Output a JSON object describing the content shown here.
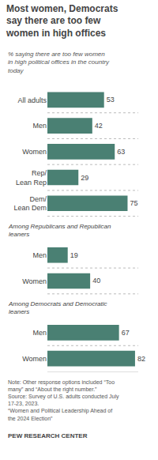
{
  "chart_data": {
    "type": "bar",
    "orientation": "horizontal",
    "title": "Most women, Democrats\nsay there are too few\nwomen in high offices",
    "subtitle": "% saying there are too few women\nin high political offices in the country\ntoday",
    "categories": [
      "All adults",
      "Men",
      "Women",
      "Rep/\nLean Rep",
      "Dem/\nLean Dem",
      "Men",
      "Women",
      "Men",
      "Women"
    ],
    "values": [
      53,
      42,
      63,
      29,
      75,
      19,
      40,
      67,
      82
    ],
    "color": "#4a8073",
    "xlim": [
      0,
      85
    ],
    "data_labels": true,
    "tick_labels": "y",
    "grid": false,
    "annotations": [
      {
        "text": "Among Republicans and Republican\nleaners",
        "y": 4.5
      },
      {
        "text": "Among Democrats and Democratic\nleaners",
        "y": 6.5
      }
    ],
    "note": "Note: Other response options included “Too\nmany” and “About the right number.”\nSource: Survey of U.S. adults conducted July\n17-23, 2023.\n“Women and Political Leadership Ahead of\nthe 2024 Election”",
    "source": "PEW RESEARCH CENTER"
  }
}
